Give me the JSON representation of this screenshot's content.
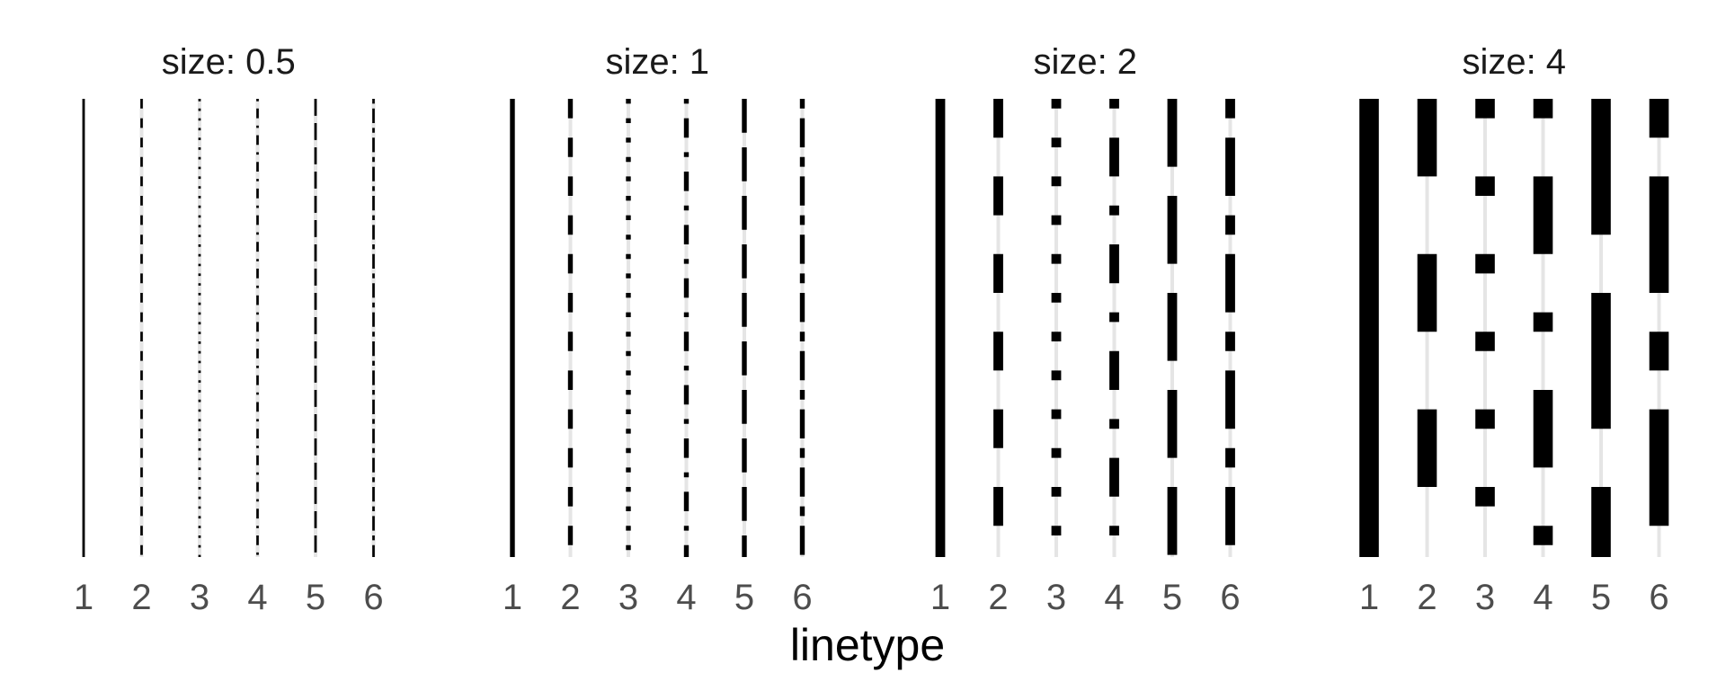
{
  "chart_data": {
    "type": "line",
    "facet_by": "size",
    "xlabel": "linetype",
    "ylabel": "",
    "categories": [
      "1",
      "2",
      "3",
      "4",
      "5",
      "6"
    ],
    "panels": [
      {
        "title": "size: 0.5",
        "size": 0.5
      },
      {
        "title": "size: 1",
        "size": 1
      },
      {
        "title": "size: 2",
        "size": 2
      },
      {
        "title": "size: 4",
        "size": 4
      }
    ],
    "linetypes": [
      {
        "label": "1",
        "name": "solid",
        "pattern": []
      },
      {
        "label": "2",
        "name": "dashed",
        "pattern": [
          4,
          4
        ]
      },
      {
        "label": "3",
        "name": "dotted",
        "pattern": [
          1,
          3
        ]
      },
      {
        "label": "4",
        "name": "dotdash",
        "pattern": [
          1,
          3,
          4,
          3
        ]
      },
      {
        "label": "5",
        "name": "longdash",
        "pattern": [
          7,
          3
        ]
      },
      {
        "label": "6",
        "name": "twodash",
        "pattern": [
          2,
          2,
          6,
          2
        ]
      }
    ],
    "grid": true,
    "legend": "none",
    "colors": {
      "line": "#000000",
      "grid": "#e5e5e5",
      "tick_text": "#4d4d4d"
    }
  }
}
